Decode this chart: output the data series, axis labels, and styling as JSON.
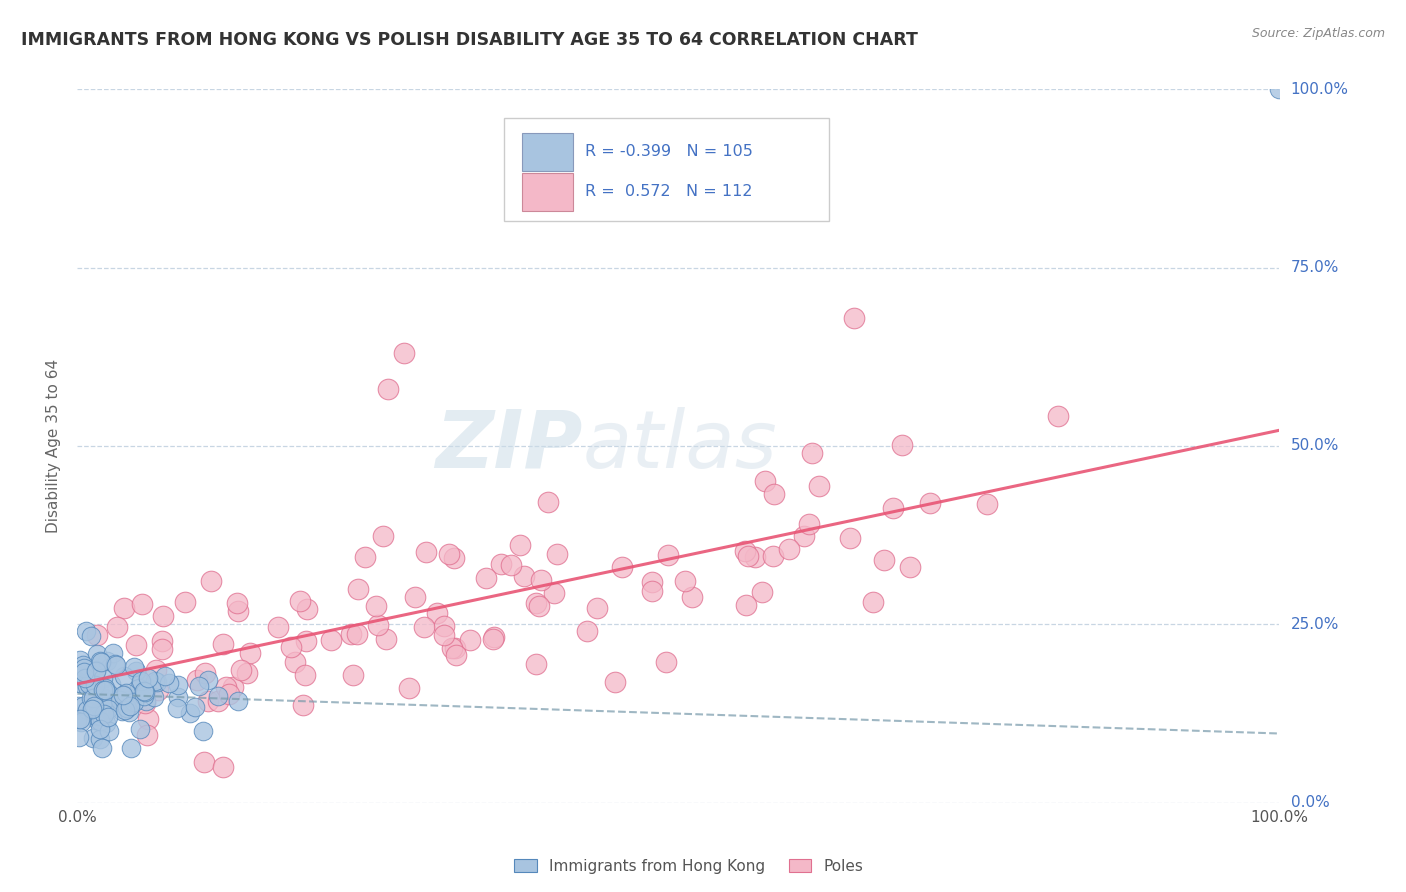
{
  "title": "IMMIGRANTS FROM HONG KONG VS POLISH DISABILITY AGE 35 TO 64 CORRELATION CHART",
  "source": "Source: ZipAtlas.com",
  "ylabel": "Disability Age 35 to 64",
  "xmin": 0.0,
  "xmax": 1.0,
  "ymin": 0.0,
  "ymax": 1.0,
  "hk_R": -0.399,
  "hk_N": 105,
  "pol_R": 0.572,
  "pol_N": 112,
  "hk_color": "#a8c4e0",
  "hk_edge_color": "#5588bb",
  "pol_color": "#f4b8c8",
  "pol_edge_color": "#e07090",
  "hk_trend_color": "#7799aa",
  "pol_trend_color": "#e85575",
  "watermark_color": "#ccdde8",
  "background_color": "#ffffff",
  "grid_color": "#bbccdd",
  "title_color": "#333333",
  "tick_color": "#4472c4",
  "ylabel_color": "#666666",
  "legend_text_color": "#4472c4",
  "source_color": "#888888"
}
